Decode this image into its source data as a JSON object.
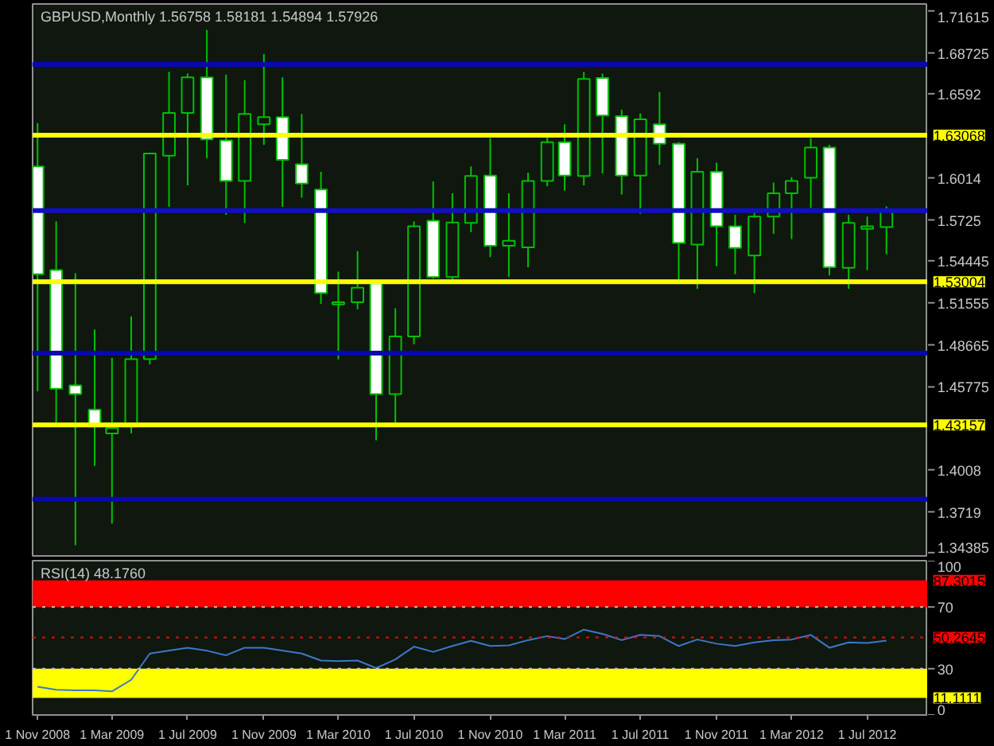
{
  "chart_data": [
    {
      "type": "candlestick",
      "title": "GBPUSD,Monthly  1.56758 1.58181 1.54894 1.57926",
      "color": "#00c000",
      "x": [
        "2008-11",
        "2008-12",
        "2009-01",
        "2009-02",
        "2009-03",
        "2009-04",
        "2009-05",
        "2009-06",
        "2009-07",
        "2009-08",
        "2009-09",
        "2009-10",
        "2009-11",
        "2009-12",
        "2010-01",
        "2010-02",
        "2010-03",
        "2010-04",
        "2010-05",
        "2010-06",
        "2010-07",
        "2010-08",
        "2010-09",
        "2010-10",
        "2010-11",
        "2010-12",
        "2011-01",
        "2011-02",
        "2011-03",
        "2011-04",
        "2011-05",
        "2011-06",
        "2011-07",
        "2011-08",
        "2011-09",
        "2011-10",
        "2011-11",
        "2011-12",
        "2012-01",
        "2012-02",
        "2012-03",
        "2012-04",
        "2012-05",
        "2012-06",
        "2012-07",
        "2012-08"
      ],
      "ohlc": [
        [
          1.6093,
          1.639,
          1.4547,
          1.5352
        ],
        [
          1.5381,
          1.5715,
          1.4332,
          1.4565
        ],
        [
          1.4588,
          1.5359,
          1.349,
          1.4528
        ],
        [
          1.4421,
          1.4973,
          1.4035,
          1.4306
        ],
        [
          1.4258,
          1.4777,
          1.3638,
          1.4295
        ],
        [
          1.4306,
          1.5062,
          1.4258,
          1.4769
        ],
        [
          1.4769,
          1.6186,
          1.4732,
          1.6182
        ],
        [
          1.6167,
          1.6742,
          1.5815,
          1.646
        ],
        [
          1.646,
          1.6731,
          1.5963,
          1.6705
        ],
        [
          1.6705,
          1.7031,
          1.6149,
          1.6279
        ],
        [
          1.6271,
          1.6724,
          1.576,
          1.5993
        ],
        [
          1.5993,
          1.6686,
          1.5704,
          1.6453
        ],
        [
          1.6382,
          1.6865,
          1.6241,
          1.6431
        ],
        [
          1.6431,
          1.6705,
          1.5815,
          1.6138
        ],
        [
          1.6108,
          1.6453,
          1.5878,
          1.5975
        ],
        [
          1.5934,
          1.6056,
          1.5148,
          1.5222
        ],
        [
          1.5144,
          1.537,
          1.4766,
          1.5159
        ],
        [
          1.5159,
          1.5511,
          1.5111,
          1.5259
        ],
        [
          1.5289,
          1.5296,
          1.421,
          1.4528
        ],
        [
          1.4528,
          1.5118,
          1.4332,
          1.4925
        ],
        [
          1.4925,
          1.5715,
          1.487,
          1.5682
        ],
        [
          1.5719,
          1.5989,
          1.5322,
          1.5333
        ],
        [
          1.5333,
          1.5908,
          1.5315,
          1.5708
        ],
        [
          1.5704,
          1.6093,
          1.5641,
          1.6027
        ],
        [
          1.603,
          1.6286,
          1.547,
          1.5548
        ],
        [
          1.5548,
          1.5908,
          1.5333,
          1.5581
        ],
        [
          1.5537,
          1.6049,
          1.54,
          1.5993
        ],
        [
          1.5993,
          1.6297,
          1.5956,
          1.626
        ],
        [
          1.626,
          1.6382,
          1.5926,
          1.603
        ],
        [
          1.6027,
          1.6742,
          1.5963,
          1.6694
        ],
        [
          1.6701,
          1.6731,
          1.6045,
          1.6442
        ],
        [
          1.6438,
          1.6483,
          1.59,
          1.603
        ],
        [
          1.603,
          1.6457,
          1.5767,
          1.6416
        ],
        [
          1.6382,
          1.6605,
          1.6104,
          1.6249
        ],
        [
          1.6249,
          1.626,
          1.5315,
          1.5567
        ],
        [
          1.5556,
          1.6149,
          1.5251,
          1.6056
        ],
        [
          1.6056,
          1.6119,
          1.5407,
          1.5682
        ],
        [
          1.5682,
          1.576,
          1.5352,
          1.5533
        ],
        [
          1.5481,
          1.5778,
          1.5222,
          1.5748
        ],
        [
          1.5748,
          1.5982,
          1.563,
          1.5908
        ],
        [
          1.5908,
          1.6019,
          1.5593,
          1.5993
        ],
        [
          1.6015,
          1.6286,
          1.5808,
          1.6223
        ],
        [
          1.6223,
          1.6241,
          1.5344,
          1.54
        ],
        [
          1.5396,
          1.576,
          1.5251,
          1.5704
        ],
        [
          1.5663,
          1.5748,
          1.5381,
          1.5682
        ],
        [
          1.56758,
          1.58181,
          1.54894,
          1.57926
        ]
      ],
      "xlim": [
        "2008-10-24",
        "2012-10-07"
      ],
      "ylim": [
        1.3405,
        1.7209
      ],
      "yticks": [
        1.71615,
        1.68725,
        1.6592,
        1.6014,
        1.5725,
        1.54445,
        1.51555,
        1.48665,
        1.45775,
        1.4008,
        1.3719,
        1.34385
      ],
      "ref_lines": [
        {
          "axis": "y",
          "value": 1.6794,
          "label": null,
          "color": "#0808b0"
        },
        {
          "axis": "y",
          "value": 1.63068,
          "label": "1.63068",
          "color": "#ffff00"
        },
        {
          "axis": "y",
          "value": 1.5789,
          "label": null,
          "color": "#1010c0"
        },
        {
          "axis": "y",
          "value": 1.53004,
          "label": "1.53004",
          "color": "#ffff00"
        },
        {
          "axis": "y",
          "value": 1.481,
          "label": null,
          "color": "#0808b0"
        },
        {
          "axis": "y",
          "value": 1.43157,
          "label": "1.43157",
          "color": "#ffff00"
        },
        {
          "axis": "y",
          "value": 1.3805,
          "label": null,
          "color": "#0808b0"
        }
      ],
      "tick_labels": "y"
    },
    {
      "type": "line",
      "title": "RSI(14) 48.1760",
      "x": [
        "2008-11",
        "2008-12",
        "2009-01",
        "2009-02",
        "2009-03",
        "2009-04",
        "2009-05",
        "2009-06",
        "2009-07",
        "2009-08",
        "2009-09",
        "2009-10",
        "2009-11",
        "2009-12",
        "2010-01",
        "2010-02",
        "2010-03",
        "2010-04",
        "2010-05",
        "2010-06",
        "2010-07",
        "2010-08",
        "2010-09",
        "2010-10",
        "2010-11",
        "2010-12",
        "2011-01",
        "2011-02",
        "2011-03",
        "2011-04",
        "2011-05",
        "2011-06",
        "2011-07",
        "2011-08",
        "2011-09",
        "2011-10",
        "2011-11",
        "2011-12",
        "2012-01",
        "2012-02",
        "2012-03",
        "2012-04",
        "2012-05",
        "2012-06",
        "2012-07",
        "2012-08"
      ],
      "series": [
        {
          "color": "#3c78c8",
          "values": [
            18.3,
            16.4,
            16.0,
            16.0,
            15.3,
            22.8,
            39.8,
            41.7,
            43.6,
            41.7,
            38.7,
            43.6,
            43.6,
            41.7,
            39.8,
            35.3,
            34.9,
            35.3,
            30.4,
            36.0,
            44.3,
            40.9,
            44.7,
            48.1,
            44.7,
            45.1,
            48.5,
            51.1,
            49.2,
            55.3,
            52.6,
            48.5,
            51.9,
            51.1,
            44.7,
            48.9,
            46.2,
            44.7,
            47.0,
            48.5,
            48.9,
            51.9,
            43.6,
            47.0,
            46.6,
            48.2
          ]
        }
      ],
      "xlim": [
        "2008-10-24",
        "2012-10-07"
      ],
      "ylim": [
        0,
        100
      ],
      "yticks": [
        0,
        30,
        70,
        100
      ],
      "xticks": [
        {
          "value": "2008-11",
          "label": "1 Nov 2008"
        },
        {
          "value": "2009-03",
          "label": "1 Mar 2009"
        },
        {
          "value": "2009-07",
          "label": "1 Jul 2009"
        },
        {
          "value": "2009-11",
          "label": "1 Nov 2009"
        },
        {
          "value": "2010-03",
          "label": "1 Mar 2010"
        },
        {
          "value": "2010-07",
          "label": "1 Jul 2010"
        },
        {
          "value": "2010-11",
          "label": "1 Nov 2010"
        },
        {
          "value": "2011-03",
          "label": "1 Mar 2011"
        },
        {
          "value": "2011-07",
          "label": "1 Jul 2011"
        },
        {
          "value": "2011-11",
          "label": "1 Nov 2011"
        },
        {
          "value": "2012-03",
          "label": "1 Mar 2012"
        },
        {
          "value": "2012-07",
          "label": "1 Jul 2012"
        }
      ],
      "bands": [
        {
          "axis": "y",
          "from": 70,
          "to": 87.3015,
          "label": "87.3015",
          "color": "#ff0000"
        },
        {
          "axis": "y",
          "from": 11.1111,
          "to": 30,
          "label": "11.1111",
          "color": "#ffff00"
        }
      ],
      "ref_lines": [
        {
          "axis": "y",
          "value": 70,
          "label": null,
          "color": "#c0c0c0",
          "line_style": "dotted"
        },
        {
          "axis": "y",
          "value": 30,
          "label": null,
          "color": "#c0c0c0",
          "line_style": "dotted"
        },
        {
          "axis": "y",
          "value": 50.2645,
          "label": "50.2645",
          "color": "#ff0000",
          "line_style": "dotted"
        }
      ]
    }
  ]
}
